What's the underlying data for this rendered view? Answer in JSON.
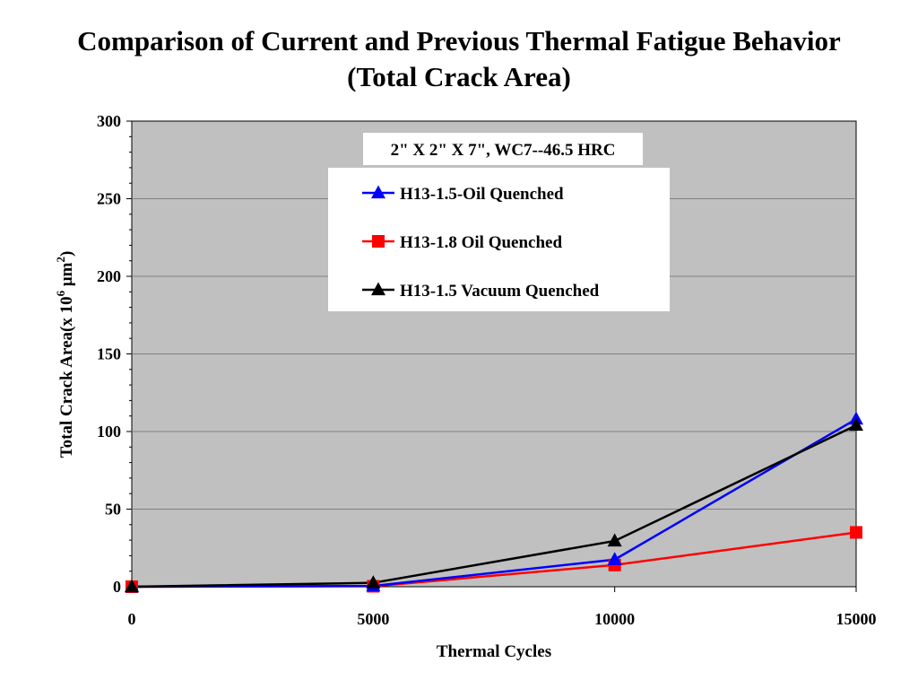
{
  "chart_data": {
    "type": "line",
    "title_line1": "Comparison of Current and Previous Thermal Fatigue Behavior",
    "title_line2": "(Total Crack Area)",
    "xlabel": "Thermal Cycles",
    "ylabel_prefix": "Total Crack Area(x 10",
    "ylabel_exp": "6",
    "ylabel_unit": " μm",
    "ylabel_unit_exp": "2",
    "ylabel_suffix": ")",
    "annotation": "2\" X 2\" X 7\", WC7--46.5 HRC",
    "x": [
      0,
      5000,
      10000,
      15000
    ],
    "x_ticks": [
      "0",
      "5000",
      "10000",
      "15000"
    ],
    "xlim": [
      0,
      15000
    ],
    "ylim": [
      0,
      300
    ],
    "y_ticks": [
      "0",
      "50",
      "100",
      "150",
      "200",
      "250",
      "300"
    ],
    "grid": true,
    "legend_position": "top-center",
    "plot_background": "#c0c0c0",
    "series": [
      {
        "name": "H13-1.5-Oil Quenched",
        "values": [
          0,
          0.5,
          17.5,
          108
        ],
        "color": "#0000ff",
        "marker": "triangle"
      },
      {
        "name": "H13-1.8 Oil Quenched",
        "values": [
          0,
          0.3,
          14,
          35
        ],
        "color": "#ff0000",
        "marker": "square"
      },
      {
        "name": "H13-1.5 Vacuum Quenched",
        "values": [
          0,
          2.5,
          29.5,
          104
        ],
        "color": "#000000",
        "marker": "triangle"
      }
    ]
  }
}
